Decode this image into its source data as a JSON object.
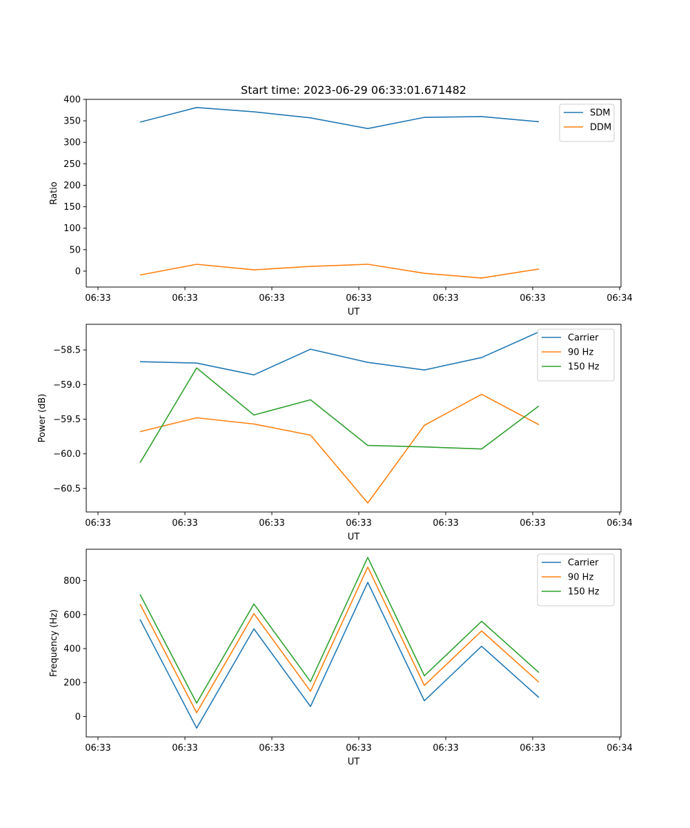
{
  "figure": {
    "title": "Start time: 2023-06-29 06:33:01.671482"
  },
  "chart_data": [
    {
      "type": "line",
      "xlabel": "UT",
      "ylabel": "Ratio",
      "x_tick_labels": [
        "06:33",
        "06:33",
        "06:33",
        "06:33",
        "06:33",
        "06:33",
        "06:34"
      ],
      "y_ticks": [
        0,
        50,
        100,
        150,
        200,
        250,
        300,
        350,
        400
      ],
      "ylim": [
        -37,
        400
      ],
      "legend_position": "top-right",
      "series": [
        {
          "name": "SDM",
          "color": "#1f77b4",
          "values": [
            347,
            381,
            371,
            357,
            332,
            358,
            360,
            348
          ]
        },
        {
          "name": "DDM",
          "color": "#ff7f0e",
          "values": [
            -9,
            16,
            3,
            11,
            16,
            -5,
            -16,
            5
          ]
        }
      ]
    },
    {
      "type": "line",
      "xlabel": "UT",
      "ylabel": "Power (dB)",
      "x_tick_labels": [
        "06:33",
        "06:33",
        "06:33",
        "06:33",
        "06:33",
        "06:33",
        "06:34"
      ],
      "y_ticks": [
        -60.5,
        -60.0,
        -59.5,
        -59.0,
        -58.5
      ],
      "y_tick_labels": [
        "−60.5",
        "−60.0",
        "−59.5",
        "−59.0",
        "−58.5"
      ],
      "ylim": [
        -60.84,
        -58.13
      ],
      "legend_position": "top-right",
      "series": [
        {
          "name": "Carrier",
          "color": "#1f77b4",
          "values": [
            -58.67,
            -58.69,
            -58.86,
            -58.49,
            -58.68,
            -58.79,
            -58.61,
            -58.24
          ]
        },
        {
          "name": "90 Hz",
          "color": "#ff7f0e",
          "values": [
            -59.68,
            -59.48,
            -59.57,
            -59.73,
            -60.71,
            -59.59,
            -59.14,
            -59.58
          ]
        },
        {
          "name": "150 Hz",
          "color": "#2ca02c",
          "values": [
            -60.13,
            -58.76,
            -59.44,
            -59.22,
            -59.88,
            -59.9,
            -59.93,
            -59.31
          ]
        }
      ]
    },
    {
      "type": "line",
      "xlabel": "UT",
      "ylabel": "Frequency (Hz)",
      "x_tick_labels": [
        "06:33",
        "06:33",
        "06:33",
        "06:33",
        "06:33",
        "06:33",
        "06:34"
      ],
      "y_ticks": [
        0,
        200,
        400,
        600,
        800
      ],
      "ylim": [
        -120,
        985
      ],
      "legend_position": "top-right",
      "series": [
        {
          "name": "Carrier",
          "color": "#1f77b4",
          "values": [
            572,
            -68,
            516,
            59,
            790,
            93,
            414,
            112
          ]
        },
        {
          "name": "90 Hz",
          "color": "#ff7f0e",
          "values": [
            662,
            22,
            606,
            149,
            880,
            183,
            504,
            202
          ]
        },
        {
          "name": "150 Hz",
          "color": "#2ca02c",
          "values": [
            719,
            79,
            663,
            206,
            937,
            240,
            561,
            259
          ]
        }
      ]
    }
  ]
}
